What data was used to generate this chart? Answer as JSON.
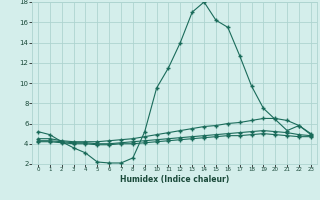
{
  "xlabel": "Humidex (Indice chaleur)",
  "bg_color": "#d4eeeb",
  "grid_color": "#aed4d0",
  "line_color": "#1a6b5a",
  "xlim": [
    -0.5,
    23.5
  ],
  "ylim": [
    2,
    18
  ],
  "xticks": [
    0,
    1,
    2,
    3,
    4,
    5,
    6,
    7,
    8,
    9,
    10,
    11,
    12,
    13,
    14,
    15,
    16,
    17,
    18,
    19,
    20,
    21,
    22,
    23
  ],
  "yticks": [
    2,
    4,
    6,
    8,
    10,
    12,
    14,
    16,
    18
  ],
  "line1_x": [
    0,
    1,
    2,
    3,
    4,
    5,
    6,
    7,
    8,
    9,
    10,
    11,
    12,
    13,
    14,
    15,
    16,
    17,
    18,
    19,
    20,
    21,
    22,
    23
  ],
  "line1_y": [
    5.2,
    4.9,
    4.2,
    3.6,
    3.1,
    2.2,
    2.1,
    2.1,
    2.6,
    5.2,
    9.5,
    11.5,
    14.0,
    17.0,
    18.0,
    16.2,
    15.5,
    12.7,
    9.7,
    7.5,
    6.4,
    5.3,
    5.8,
    4.9
  ],
  "line2_x": [
    0,
    1,
    2,
    3,
    4,
    5,
    6,
    7,
    8,
    9,
    10,
    11,
    12,
    13,
    14,
    15,
    16,
    17,
    18,
    19,
    20,
    21,
    22,
    23
  ],
  "line2_y": [
    4.5,
    4.5,
    4.3,
    4.2,
    4.2,
    4.2,
    4.3,
    4.4,
    4.5,
    4.7,
    4.9,
    5.1,
    5.3,
    5.5,
    5.7,
    5.8,
    6.0,
    6.1,
    6.3,
    6.5,
    6.5,
    6.3,
    5.8,
    5.0
  ],
  "line3_x": [
    0,
    1,
    2,
    3,
    4,
    5,
    6,
    7,
    8,
    9,
    10,
    11,
    12,
    13,
    14,
    15,
    16,
    17,
    18,
    19,
    20,
    21,
    22,
    23
  ],
  "line3_y": [
    4.3,
    4.3,
    4.2,
    4.1,
    4.1,
    4.0,
    4.0,
    4.1,
    4.2,
    4.3,
    4.4,
    4.5,
    4.6,
    4.7,
    4.8,
    4.9,
    5.0,
    5.1,
    5.2,
    5.3,
    5.2,
    5.1,
    4.9,
    4.8
  ],
  "line4_x": [
    0,
    1,
    2,
    3,
    4,
    5,
    6,
    7,
    8,
    9,
    10,
    11,
    12,
    13,
    14,
    15,
    16,
    17,
    18,
    19,
    20,
    21,
    22,
    23
  ],
  "line4_y": [
    4.2,
    4.2,
    4.1,
    4.0,
    4.0,
    3.9,
    3.9,
    4.0,
    4.0,
    4.1,
    4.2,
    4.3,
    4.4,
    4.5,
    4.6,
    4.7,
    4.8,
    4.8,
    4.9,
    5.0,
    4.9,
    4.8,
    4.7,
    4.7
  ]
}
